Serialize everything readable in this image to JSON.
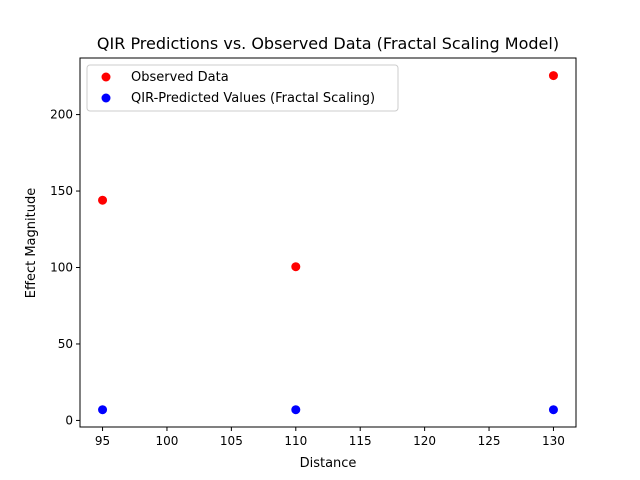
{
  "chart_data": {
    "type": "scatter",
    "title": "QIR Predictions vs. Observed Data (Fractal Scaling Model)",
    "xlabel": "Distance",
    "ylabel": "Effect Magnitude",
    "xlim": [
      93.25,
      131.75
    ],
    "ylim": [
      -4.3,
      237.0
    ],
    "xticks": [
      95,
      100,
      105,
      110,
      115,
      120,
      125,
      130
    ],
    "yticks": [
      0,
      50,
      100,
      150,
      200
    ],
    "grid": false,
    "legend_position": "top-left",
    "series": [
      {
        "name": "Observed Data",
        "color": "#ff0000",
        "x": [
          95,
          110,
          130
        ],
        "y": [
          144,
          100.5,
          225.5
        ]
      },
      {
        "name": "QIR-Predicted Values (Fractal Scaling)",
        "color": "#0000ff",
        "x": [
          95,
          110,
          130
        ],
        "y": [
          7,
          7,
          7
        ]
      }
    ]
  }
}
